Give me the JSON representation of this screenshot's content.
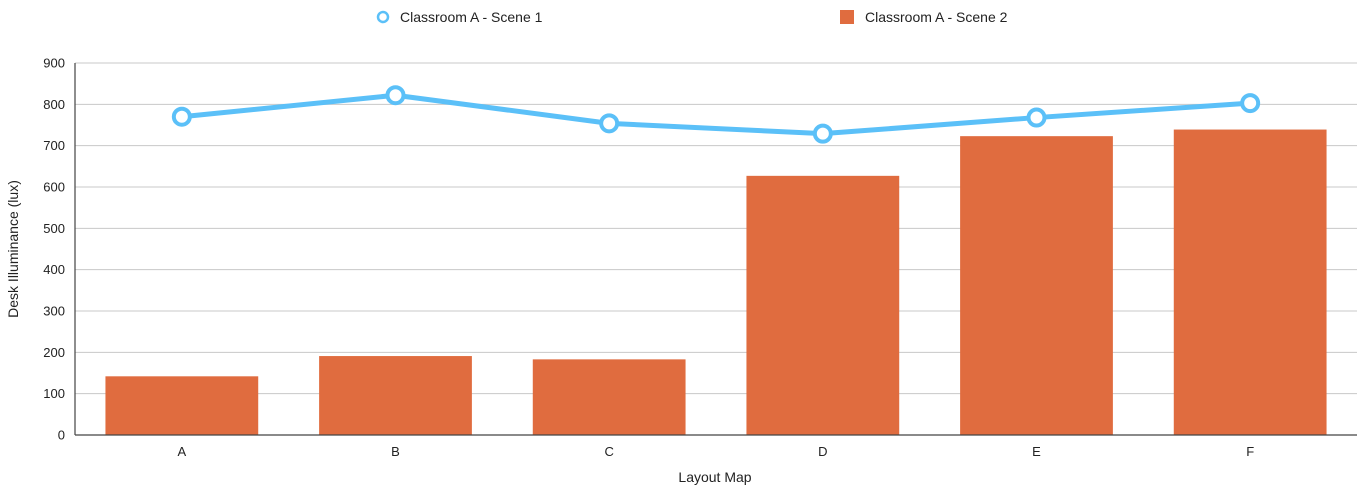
{
  "chart_data": {
    "type": "bar",
    "title": "",
    "xlabel": "Layout Map",
    "ylabel": "Desk Illuminance (lux)",
    "categories": [
      "A",
      "B",
      "C",
      "D",
      "E",
      "F"
    ],
    "ylim": [
      0,
      900
    ],
    "yticks": [
      0,
      100,
      200,
      300,
      400,
      500,
      600,
      700,
      800,
      900
    ],
    "grid": true,
    "legend_position": "top",
    "series": [
      {
        "name": "Classroom A - Scene 1",
        "type": "line",
        "color": "#5bc0f8",
        "values": [
          770,
          822,
          754,
          729,
          768,
          803
        ]
      },
      {
        "name": "Classroom A - Scene 2",
        "type": "bar",
        "color": "#e06c3f",
        "values": [
          142,
          191,
          183,
          627,
          723,
          739
        ]
      }
    ]
  }
}
